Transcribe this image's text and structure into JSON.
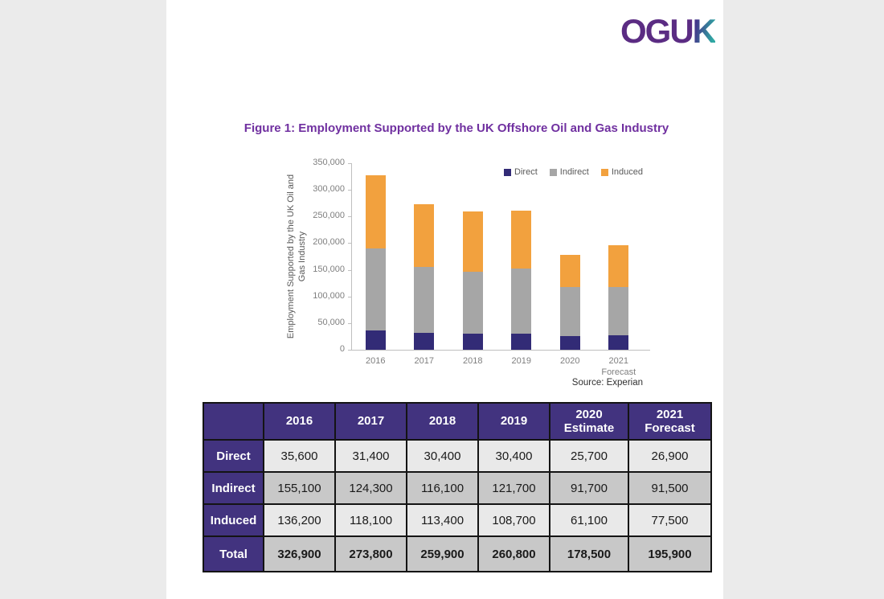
{
  "logo": {
    "text_main": "OGU",
    "text_accent": "K"
  },
  "figure": {
    "title": "Figure 1: Employment Supported by the UK Offshore Oil and Gas Industry",
    "source": "Source: Experian"
  },
  "chart_data": {
    "type": "bar",
    "stacked": true,
    "title": "Figure 1: Employment Supported by the UK Offshore Oil and Gas Industry",
    "categories": [
      "2016",
      "2017",
      "2018",
      "2019",
      "2020",
      "2021\nForecast"
    ],
    "series": [
      {
        "name": "Direct",
        "color": "#322b76",
        "values": [
          35600,
          31400,
          30400,
          30400,
          25700,
          26900
        ]
      },
      {
        "name": "Indirect",
        "color": "#a6a6a6",
        "values": [
          155100,
          124300,
          116100,
          121700,
          91700,
          91500
        ]
      },
      {
        "name": "Induced",
        "color": "#f2a13e",
        "values": [
          136200,
          118100,
          113400,
          108700,
          61100,
          77500
        ]
      }
    ],
    "totals": [
      326900,
      273800,
      259900,
      260800,
      178500,
      195900
    ],
    "xlabel": "",
    "ylabel": "Employment Supported by the UK Oil and\nGas Industry",
    "ylim": [
      0,
      350000
    ],
    "ytick_step": 50000,
    "grid": false,
    "legend_position": "top-right",
    "source": "Source: Experian"
  },
  "table": {
    "columns": [
      "",
      "2016",
      "2017",
      "2018",
      "2019",
      "2020\nEstimate",
      "2021\nForecast"
    ],
    "rows": [
      {
        "label": "Direct",
        "values": [
          "35,600",
          "31,400",
          "30,400",
          "30,400",
          "25,700",
          "26,900"
        ],
        "bold": false
      },
      {
        "label": "Indirect",
        "values": [
          "155,100",
          "124,300",
          "116,100",
          "121,700",
          "91,700",
          "91,500"
        ],
        "bold": false
      },
      {
        "label": "Induced",
        "values": [
          "136,200",
          "118,100",
          "113,400",
          "108,700",
          "61,100",
          "77,500"
        ],
        "bold": false
      },
      {
        "label": "Total",
        "values": [
          "326,900",
          "273,800",
          "259,900",
          "260,800",
          "178,500",
          "195,900"
        ],
        "bold": true
      }
    ]
  },
  "colors": {
    "title_purple": "#7030a0",
    "table_header_bg": "#42337f",
    "row_light": "#e9e9e9",
    "row_dark": "#c8c8c8",
    "axis_text": "#7f7f7f",
    "axis_line": "#bfbfbf",
    "page_margin_bg": "#ebebeb",
    "logo_purple": "#5b2c83",
    "logo_teal": "#2fa8a3"
  }
}
